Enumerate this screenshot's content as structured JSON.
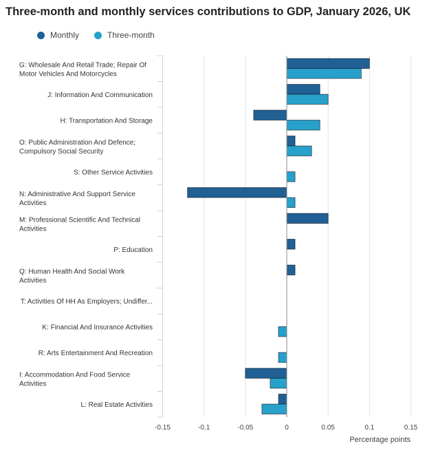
{
  "chart_data": {
    "type": "bar",
    "orientation": "horizontal",
    "title": "Three-month and monthly services contributions to GDP, January 2026, UK",
    "xlabel": "Percentage points",
    "ylabel": "",
    "xlim": [
      -0.15,
      0.15
    ],
    "xticks": [
      "-0.15",
      "-0.1",
      "-0.05",
      "0",
      "0.05",
      "0.1",
      "0.15"
    ],
    "legend_position": "top-left",
    "categories": [
      [
        "G: Wholesale And Retail Trade; Repair Of",
        "Motor Vehicles And Motorcycles"
      ],
      [
        "J: Information And Communication"
      ],
      [
        "H: Transportation And Storage"
      ],
      [
        "O: Public Administration And Defence;",
        "Compulsory Social Security"
      ],
      [
        "S: Other Service Activities"
      ],
      [
        "N: Administrative And Support Service",
        "Activities"
      ],
      [
        "M: Professional Scientific And Technical",
        "Activities"
      ],
      [
        "P: Education"
      ],
      [
        "Q: Human Health And Social Work",
        "Activities"
      ],
      [
        "T: Activities Of HH As Employers; Undiffer..."
      ],
      [
        "K: Financial And Insurance Activities"
      ],
      [
        "R: Arts Entertainment And Recreation"
      ],
      [
        "I: Accommodation And Food Service",
        "Activities"
      ],
      [
        "L: Real Estate Activities"
      ]
    ],
    "series": [
      {
        "name": "Monthly",
        "color": "#206095",
        "values": [
          0.1,
          0.04,
          -0.04,
          0.01,
          0.0,
          -0.12,
          0.05,
          0.01,
          0.01,
          0.0,
          0.0,
          0.0,
          -0.05,
          -0.01
        ]
      },
      {
        "name": "Three-month",
        "color": "#27a0cc",
        "values": [
          0.09,
          0.05,
          0.04,
          0.03,
          0.01,
          0.01,
          0.0,
          0.0,
          0.0,
          0.0,
          -0.01,
          -0.01,
          -0.02,
          -0.03
        ]
      }
    ]
  }
}
